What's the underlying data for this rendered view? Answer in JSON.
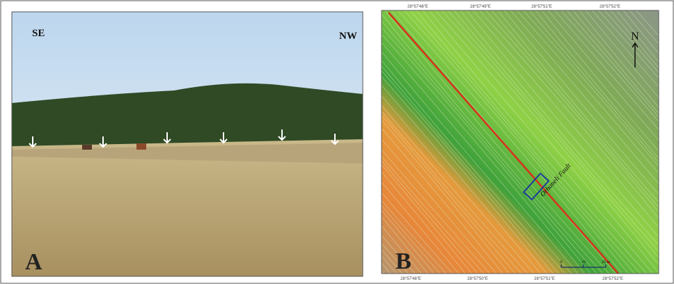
{
  "panels": [
    {
      "label": "A",
      "annotations": [
        "SE",
        "NW"
      ]
    },
    {
      "label": "B",
      "north": "N",
      "fault_label": "Orhaneli Fault",
      "scale_labels": [
        "0",
        "10",
        "20 m"
      ],
      "top_coords": [
        "28°57'48\"E",
        "28°57'49\"E",
        "28°57'51\"E",
        "28°57'52\"E"
      ],
      "bottom_coords": [
        "28°57'48\"E",
        "28°57'50\"E",
        "28°57'51\"E",
        "28°57'52\"E"
      ]
    }
  ]
}
